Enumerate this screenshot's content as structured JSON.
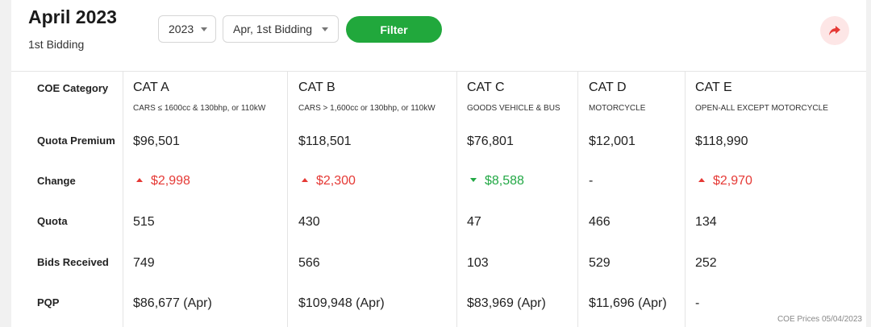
{
  "header": {
    "title": "April 2023",
    "subtitle": "1st Bidding",
    "year_select": "2023",
    "period_select": "Apr, 1st Bidding",
    "filter_label": "Filter"
  },
  "row_labels": [
    "COE Category",
    "Quota Premium",
    "Change",
    "Quota",
    "Bids Received",
    "PQP"
  ],
  "categories": [
    {
      "name": "CAT A",
      "desc": "CARS ≤ 1600cc & 130bhp, or 110kW",
      "premium": "$96,501",
      "change": "$2,998",
      "change_dir": "up",
      "quota": "515",
      "bids": "749",
      "pqp": "$86,677 (Apr)"
    },
    {
      "name": "CAT B",
      "desc": "CARS > 1,600cc or 130bhp, or 110kW",
      "premium": "$118,501",
      "change": "$2,300",
      "change_dir": "up",
      "quota": "430",
      "bids": "566",
      "pqp": "$109,948 (Apr)"
    },
    {
      "name": "CAT C",
      "desc": "GOODS VEHICLE & BUS",
      "premium": "$76,801",
      "change": "$8,588",
      "change_dir": "down",
      "quota": "47",
      "bids": "103",
      "pqp": "$83,969 (Apr)"
    },
    {
      "name": "CAT D",
      "desc": "MOTORCYCLE",
      "premium": "$12,001",
      "change": "-",
      "change_dir": "none",
      "quota": "466",
      "bids": "529",
      "pqp": "$11,696 (Apr)"
    },
    {
      "name": "CAT E",
      "desc": "OPEN-ALL EXCEPT MOTORCYCLE",
      "premium": "$118,990",
      "change": "$2,970",
      "change_dir": "up",
      "quota": "134",
      "bids": "252",
      "pqp": "-"
    }
  ],
  "footer": "COE Prices 05/04/2023",
  "colors": {
    "up": "#e53935",
    "down": "#22a845",
    "filter_button": "#21a83c",
    "share_bg": "#fde6e6",
    "share_icon": "#e53935"
  },
  "icons": {
    "share": "share-arrow-icon",
    "dropdown": "caret-down-icon"
  }
}
